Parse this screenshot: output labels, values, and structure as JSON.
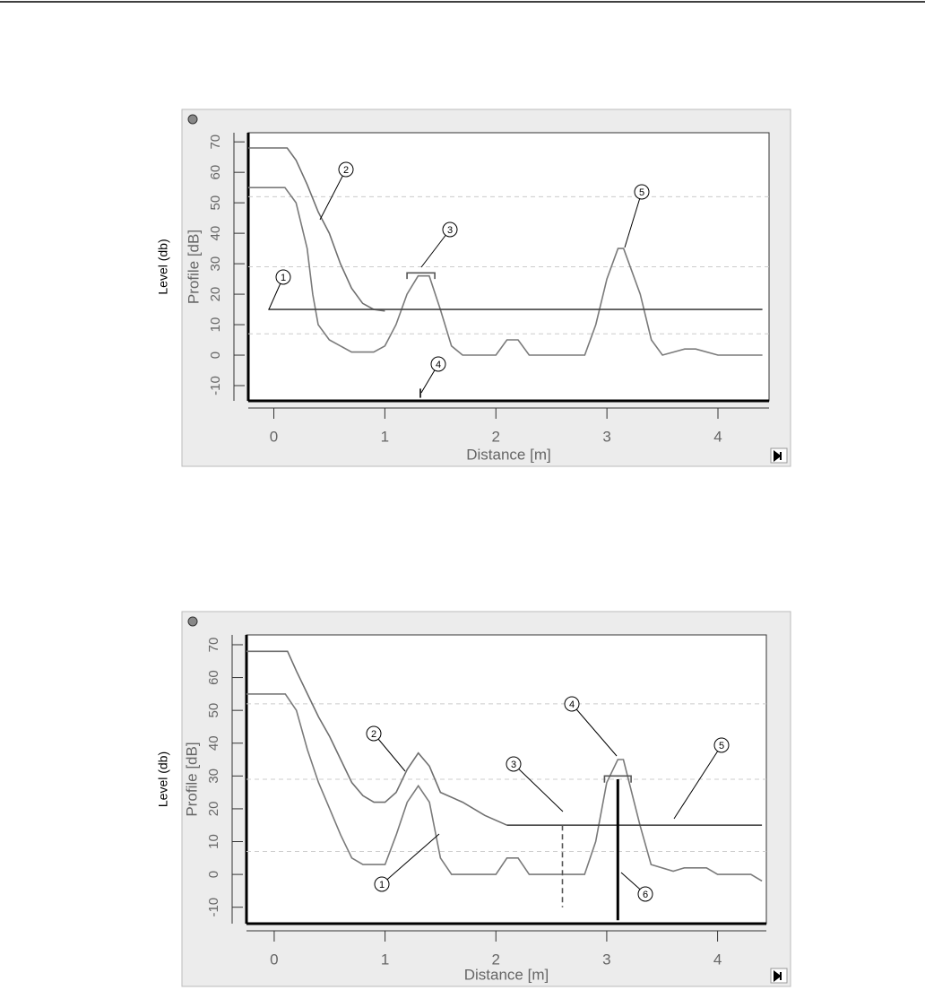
{
  "chart_data": [
    {
      "type": "line",
      "outer_label": "Level (db)",
      "ylabel": "Profile [dB]",
      "xlabel": "Distance [m]",
      "xlim": [
        -0.23,
        4.46
      ],
      "ylim": [
        -15,
        73
      ],
      "xticks": [
        0,
        1,
        2,
        3,
        4
      ],
      "yticks": [
        -10,
        0,
        10,
        20,
        30,
        40,
        50,
        60,
        70
      ],
      "reference_lines": [
        52,
        29,
        7
      ],
      "series": [
        {
          "color": "#6f6f6f",
          "x": [
            -0.23,
            0.12,
            0.2,
            0.3,
            0.4,
            0.5,
            0.6,
            0.7,
            0.8,
            0.9,
            1.0
          ],
          "values": [
            68,
            68,
            64,
            56,
            47,
            40,
            30,
            22,
            17,
            15,
            14.5
          ]
        },
        {
          "color": "#7a7a7a",
          "x": [
            -0.23,
            0.1,
            0.2,
            0.3,
            0.35,
            0.4,
            0.5,
            0.7,
            0.9,
            1.0,
            1.1,
            1.2,
            1.3,
            1.4,
            1.5,
            1.6,
            1.7,
            2.0,
            2.1,
            2.2,
            2.3,
            2.8,
            2.9,
            3.0,
            3.1,
            3.15,
            3.3,
            3.4,
            3.5,
            3.7,
            3.8,
            4.0,
            4.4
          ],
          "values": [
            55,
            55,
            50,
            35,
            20,
            10,
            5,
            1,
            1,
            3,
            10,
            20,
            26,
            26,
            15,
            3,
            0,
            0,
            5,
            5,
            0,
            0,
            10,
            25,
            35,
            35,
            20,
            5,
            0,
            2,
            2,
            0,
            0
          ]
        },
        {
          "color": "#444444",
          "x": [
            -0.05,
            4.4
          ],
          "values": [
            15,
            15
          ]
        },
        {
          "color": "#555555",
          "x": [
            1.2,
            1.2,
            1.45,
            1.45
          ],
          "values": [
            25,
            27,
            27,
            25
          ]
        },
        {
          "color": "#000000",
          "x": [
            1.32,
            1.32
          ],
          "values": [
            -14,
            -11
          ]
        }
      ],
      "annotations": [
        "1",
        "2",
        "3",
        "4",
        "5"
      ]
    },
    {
      "type": "line",
      "outer_label": "Level (db)",
      "ylabel": "Profile [dB]",
      "xlabel": "Distance [m]",
      "xlim": [
        -0.25,
        4.44
      ],
      "ylim": [
        -15,
        73
      ],
      "xticks": [
        0,
        1,
        2,
        3,
        4
      ],
      "yticks": [
        -10,
        0,
        10,
        20,
        30,
        40,
        50,
        60,
        70
      ],
      "reference_lines": [
        52,
        29,
        7
      ],
      "series": [
        {
          "color": "#6f6f6f",
          "x": [
            -0.25,
            0.12,
            0.2,
            0.3,
            0.4,
            0.5,
            0.6,
            0.7,
            0.8,
            0.9,
            1.0,
            1.1,
            1.2,
            1.3,
            1.4,
            1.5,
            1.7,
            1.9,
            2.1
          ],
          "values": [
            68,
            68,
            62,
            55,
            48,
            42,
            35,
            28,
            24,
            22,
            22,
            25,
            32,
            37,
            33,
            25,
            22,
            18,
            15
          ]
        },
        {
          "color": "#7a7a7a",
          "x": [
            -0.25,
            0.1,
            0.2,
            0.3,
            0.4,
            0.5,
            0.6,
            0.7,
            0.8,
            1.0,
            1.1,
            1.2,
            1.3,
            1.4,
            1.5,
            1.6,
            2.0,
            2.1,
            2.2,
            2.3,
            2.8,
            2.9,
            3.0,
            3.1,
            3.15,
            3.3,
            3.4,
            3.6,
            3.7,
            3.9,
            4.0,
            4.3,
            4.4
          ],
          "values": [
            55,
            55,
            50,
            38,
            28,
            20,
            12,
            5,
            3,
            3,
            12,
            22,
            27,
            22,
            5,
            0,
            0,
            5,
            5,
            0,
            0,
            10,
            28,
            35,
            35,
            15,
            3,
            1,
            2,
            2,
            0,
            0,
            -2
          ]
        },
        {
          "color": "#444444",
          "x": [
            2.1,
            4.4
          ],
          "values": [
            15,
            15
          ]
        },
        {
          "color": "#555555",
          "x": [
            2.98,
            2.98,
            3.22,
            3.22
          ],
          "values": [
            28,
            30,
            30,
            28
          ]
        },
        {
          "color": "#555555",
          "dashed": true,
          "x": [
            2.6,
            2.6
          ],
          "values": [
            15,
            -10
          ]
        },
        {
          "color": "#000000",
          "width": 3,
          "x": [
            3.1,
            3.1
          ],
          "values": [
            -14,
            29
          ]
        }
      ],
      "annotations": [
        "1",
        "2",
        "3",
        "4",
        "5",
        "6"
      ]
    }
  ]
}
